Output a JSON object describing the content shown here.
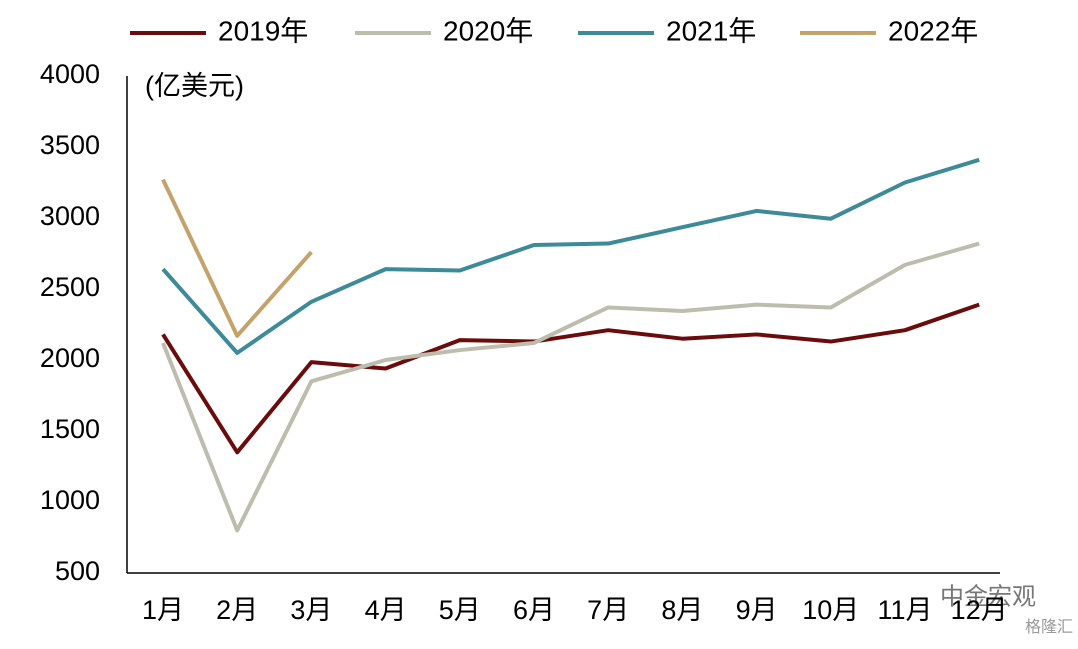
{
  "chart_data": {
    "type": "line",
    "y_unit_label": "(亿美元)",
    "categories": [
      "1月",
      "2月",
      "3月",
      "4月",
      "5月",
      "6月",
      "7月",
      "8月",
      "9月",
      "10月",
      "11月",
      "12月"
    ],
    "series": [
      {
        "name": "2019年",
        "color": "#6b0c0c",
        "values": [
          2180,
          1350,
          1985,
          1940,
          2140,
          2130,
          2210,
          2150,
          2180,
          2130,
          2210,
          2390
        ]
      },
      {
        "name": "2020年",
        "color": "#bdbdae",
        "values": [
          2120,
          800,
          1850,
          2000,
          2070,
          2120,
          2370,
          2345,
          2390,
          2370,
          2670,
          2820
        ]
      },
      {
        "name": "2021年",
        "color": "#3d8a99",
        "values": [
          2640,
          2050,
          2410,
          2640,
          2630,
          2810,
          2820,
          2935,
          3050,
          2995,
          3250,
          3410
        ]
      },
      {
        "name": "2022年",
        "color": "#c4a36a",
        "values": [
          3270,
          2170,
          2760,
          null,
          null,
          null,
          null,
          null,
          null,
          null,
          null,
          null
        ]
      }
    ],
    "ylim": [
      500,
      4000
    ],
    "yticks": [
      500,
      1000,
      1500,
      2000,
      2500,
      3000,
      3500,
      4000
    ],
    "legend": "top",
    "watermarks": [
      "中金宏观",
      "格隆汇"
    ]
  }
}
